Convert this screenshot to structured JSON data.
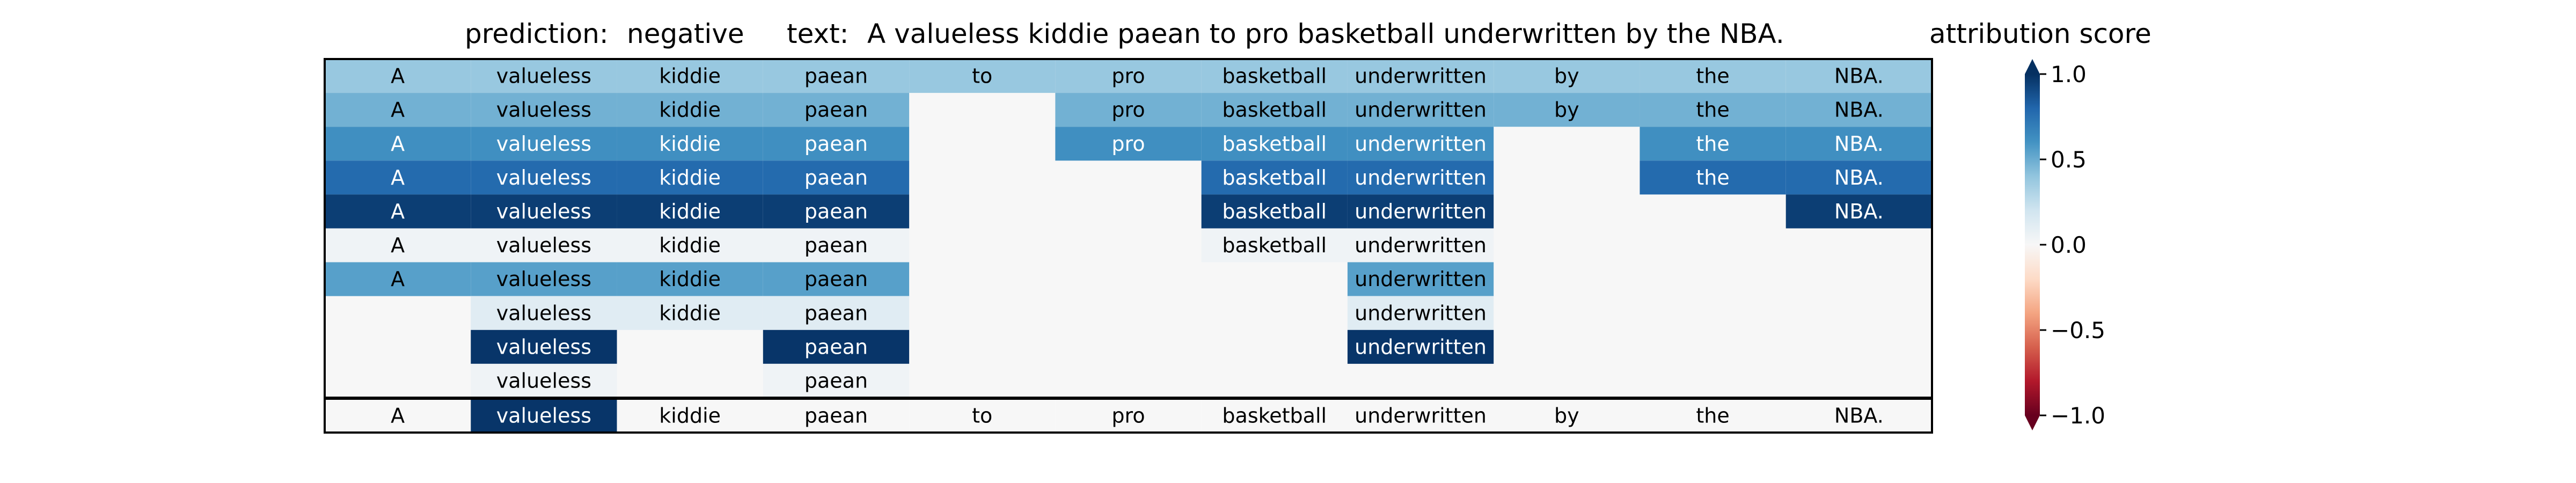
{
  "header": {
    "prediction_label": "prediction:",
    "prediction_value": "negative",
    "text_label": "text:",
    "text_value": "A valueless kiddie paean to pro basketball underwritten by the NBA.",
    "colorbar_title": "attribution score"
  },
  "chart_data": {
    "type": "heatmap",
    "columns": [
      "A",
      "valueless",
      "kiddie",
      "paean",
      "to",
      "pro",
      "basketball",
      "underwritten",
      "by",
      "the",
      "NBA."
    ],
    "rows": [
      [
        "A",
        "valueless",
        "kiddie",
        "paean",
        "to",
        "pro",
        "basketball",
        "underwritten",
        "by",
        "the",
        "NBA."
      ],
      [
        "A",
        "valueless",
        "kiddie",
        "paean",
        null,
        "pro",
        "basketball",
        "underwritten",
        "by",
        "the",
        "NBA."
      ],
      [
        "A",
        "valueless",
        "kiddie",
        "paean",
        null,
        "pro",
        "basketball",
        "underwritten",
        null,
        "the",
        "NBA."
      ],
      [
        "A",
        "valueless",
        "kiddie",
        "paean",
        null,
        null,
        "basketball",
        "underwritten",
        null,
        "the",
        "NBA."
      ],
      [
        "A",
        "valueless",
        "kiddie",
        "paean",
        null,
        null,
        "basketball",
        "underwritten",
        null,
        null,
        "NBA."
      ],
      [
        "A",
        "valueless",
        "kiddie",
        "paean",
        null,
        null,
        "basketball",
        "underwritten",
        null,
        null,
        null
      ],
      [
        "A",
        "valueless",
        "kiddie",
        "paean",
        null,
        null,
        null,
        "underwritten",
        null,
        null,
        null
      ],
      [
        null,
        "valueless",
        "kiddie",
        "paean",
        null,
        null,
        null,
        "underwritten",
        null,
        null,
        null
      ],
      [
        null,
        "valueless",
        null,
        "paean",
        null,
        null,
        null,
        "underwritten",
        null,
        null,
        null
      ],
      [
        null,
        "valueless",
        null,
        "paean",
        null,
        null,
        null,
        null,
        null,
        null,
        null
      ]
    ],
    "row_scores": [
      0.38,
      0.48,
      0.62,
      0.78,
      0.95,
      0.04,
      0.55,
      0.12,
      0.98,
      0.04
    ],
    "summary_row": {
      "tokens": [
        "A",
        "valueless",
        "kiddie",
        "paean",
        "to",
        "pro",
        "basketball",
        "underwritten",
        "by",
        "the",
        "NBA."
      ],
      "scores": [
        0.0,
        0.98,
        0.0,
        0.0,
        0.0,
        0.0,
        0.0,
        0.0,
        0.0,
        0.0,
        0.0
      ]
    },
    "colorbar": {
      "range": [
        -1.0,
        1.0
      ],
      "ticks": [
        1.0,
        0.5,
        0.0,
        -0.5,
        -1.0
      ],
      "tick_labels": [
        "1.0",
        "0.5",
        "0.0",
        "−0.5",
        "−1.0"
      ],
      "colormap": "RdBu",
      "extend": "both"
    }
  }
}
